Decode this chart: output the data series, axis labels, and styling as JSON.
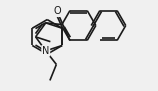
{
  "bg_color": "#f0f0f0",
  "line_color": "#1a1a1a",
  "lw": 1.2,
  "doff": 0.012,
  "fs": 7
}
